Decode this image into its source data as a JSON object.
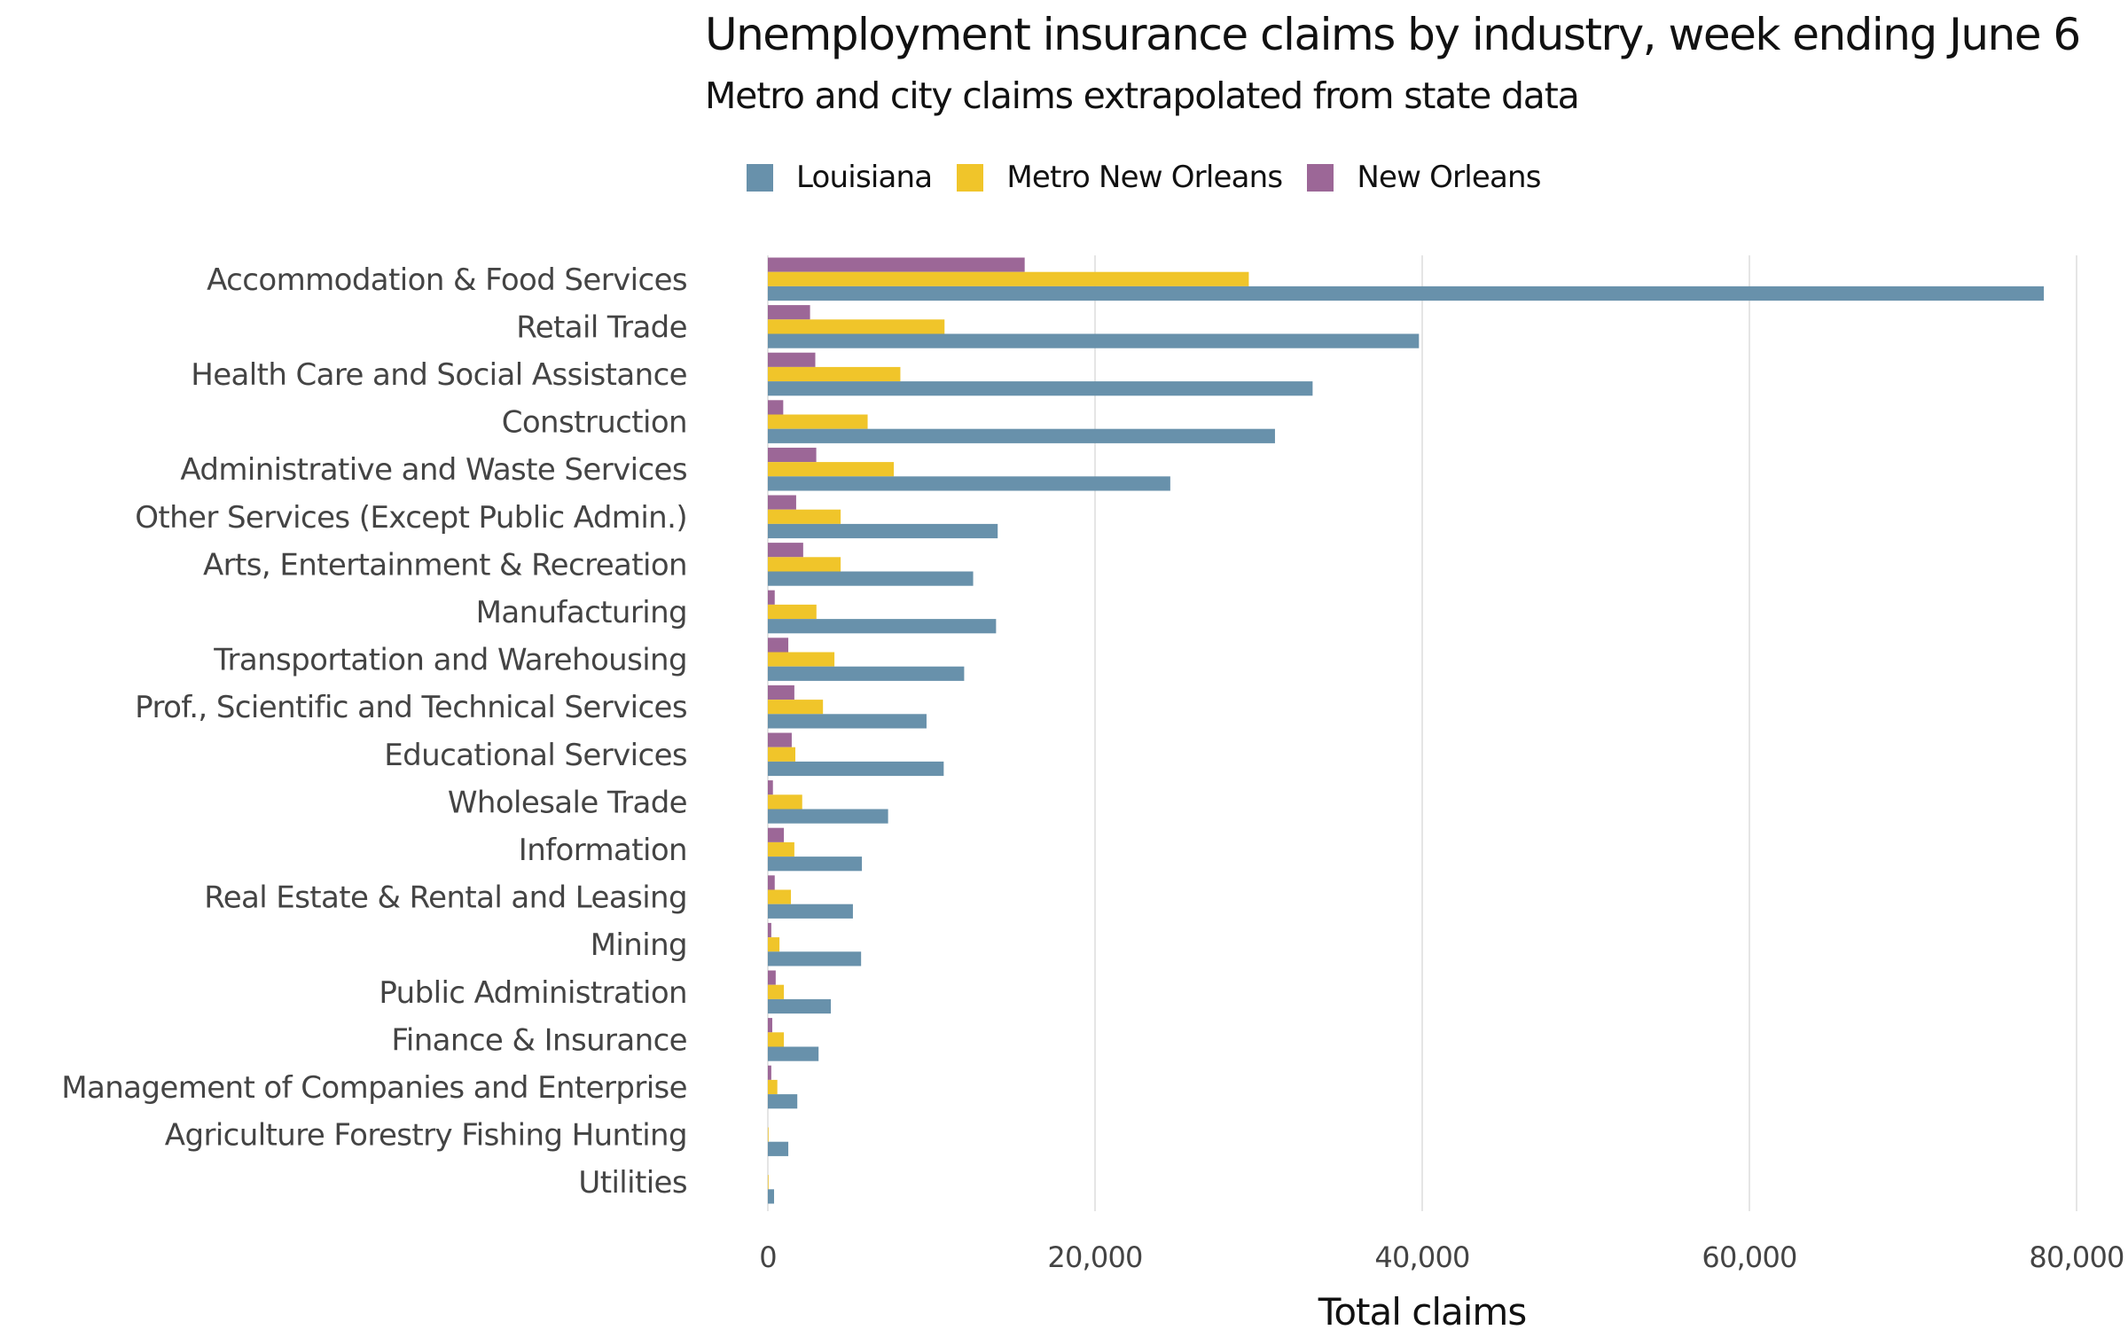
{
  "chart_data": {
    "type": "bar",
    "orientation": "horizontal",
    "title": "Unemployment insurance claims by industry, week ending June 6",
    "subtitle": "Metro and city claims extrapolated from state data",
    "xlabel": "Total claims",
    "ylabel": "",
    "xlim": [
      0,
      80000
    ],
    "xticks": [
      0,
      20000,
      40000,
      60000,
      80000
    ],
    "xtick_labels": [
      "0",
      "20,000",
      "40,000",
      "60,000",
      "80,000"
    ],
    "grid": "vertical major",
    "legend_position": "top-left",
    "categories": [
      "Accommodation & Food Services",
      "Retail Trade",
      "Health Care and Social Assistance",
      "Construction",
      "Administrative and Waste Services",
      "Other Services (Except Public Admin.)",
      "Arts, Entertainment & Recreation",
      "Manufacturing",
      "Transportation and Warehousing",
      "Prof., Scientific and Technical Services",
      "Educational Services",
      "Wholesale Trade",
      "Information",
      "Real Estate & Rental and Leasing",
      "Mining",
      "Public Administration",
      "Finance & Insurance",
      "Management of Companies and Enterprise",
      "Agriculture Forestry Fishing Hunting",
      "Utilities"
    ],
    "series": [
      {
        "name": "Louisiana",
        "color": "#6891AB",
        "values": [
          78000,
          39800,
          33300,
          31000,
          24600,
          14050,
          12550,
          13950,
          12000,
          9700,
          10750,
          7350,
          5750,
          5200,
          5700,
          3850,
          3100,
          1800,
          1250,
          380
        ]
      },
      {
        "name": "Metro New Orleans",
        "color": "#F0C52A",
        "values": [
          29400,
          10800,
          8100,
          6100,
          7700,
          4450,
          4450,
          2970,
          4070,
          3370,
          1680,
          2100,
          1620,
          1410,
          710,
          980,
          980,
          580,
          40,
          40
        ]
      },
      {
        "name": "New Orleans",
        "color": "#9C6797",
        "values": [
          15700,
          2580,
          2900,
          940,
          2960,
          1730,
          2160,
          420,
          1250,
          1620,
          1460,
          310,
          980,
          420,
          210,
          480,
          270,
          210,
          0,
          0
        ]
      }
    ]
  },
  "colors": {
    "gridline": "#E5E5E5",
    "text_dark": "#111111",
    "text_axis": "#444444"
  }
}
